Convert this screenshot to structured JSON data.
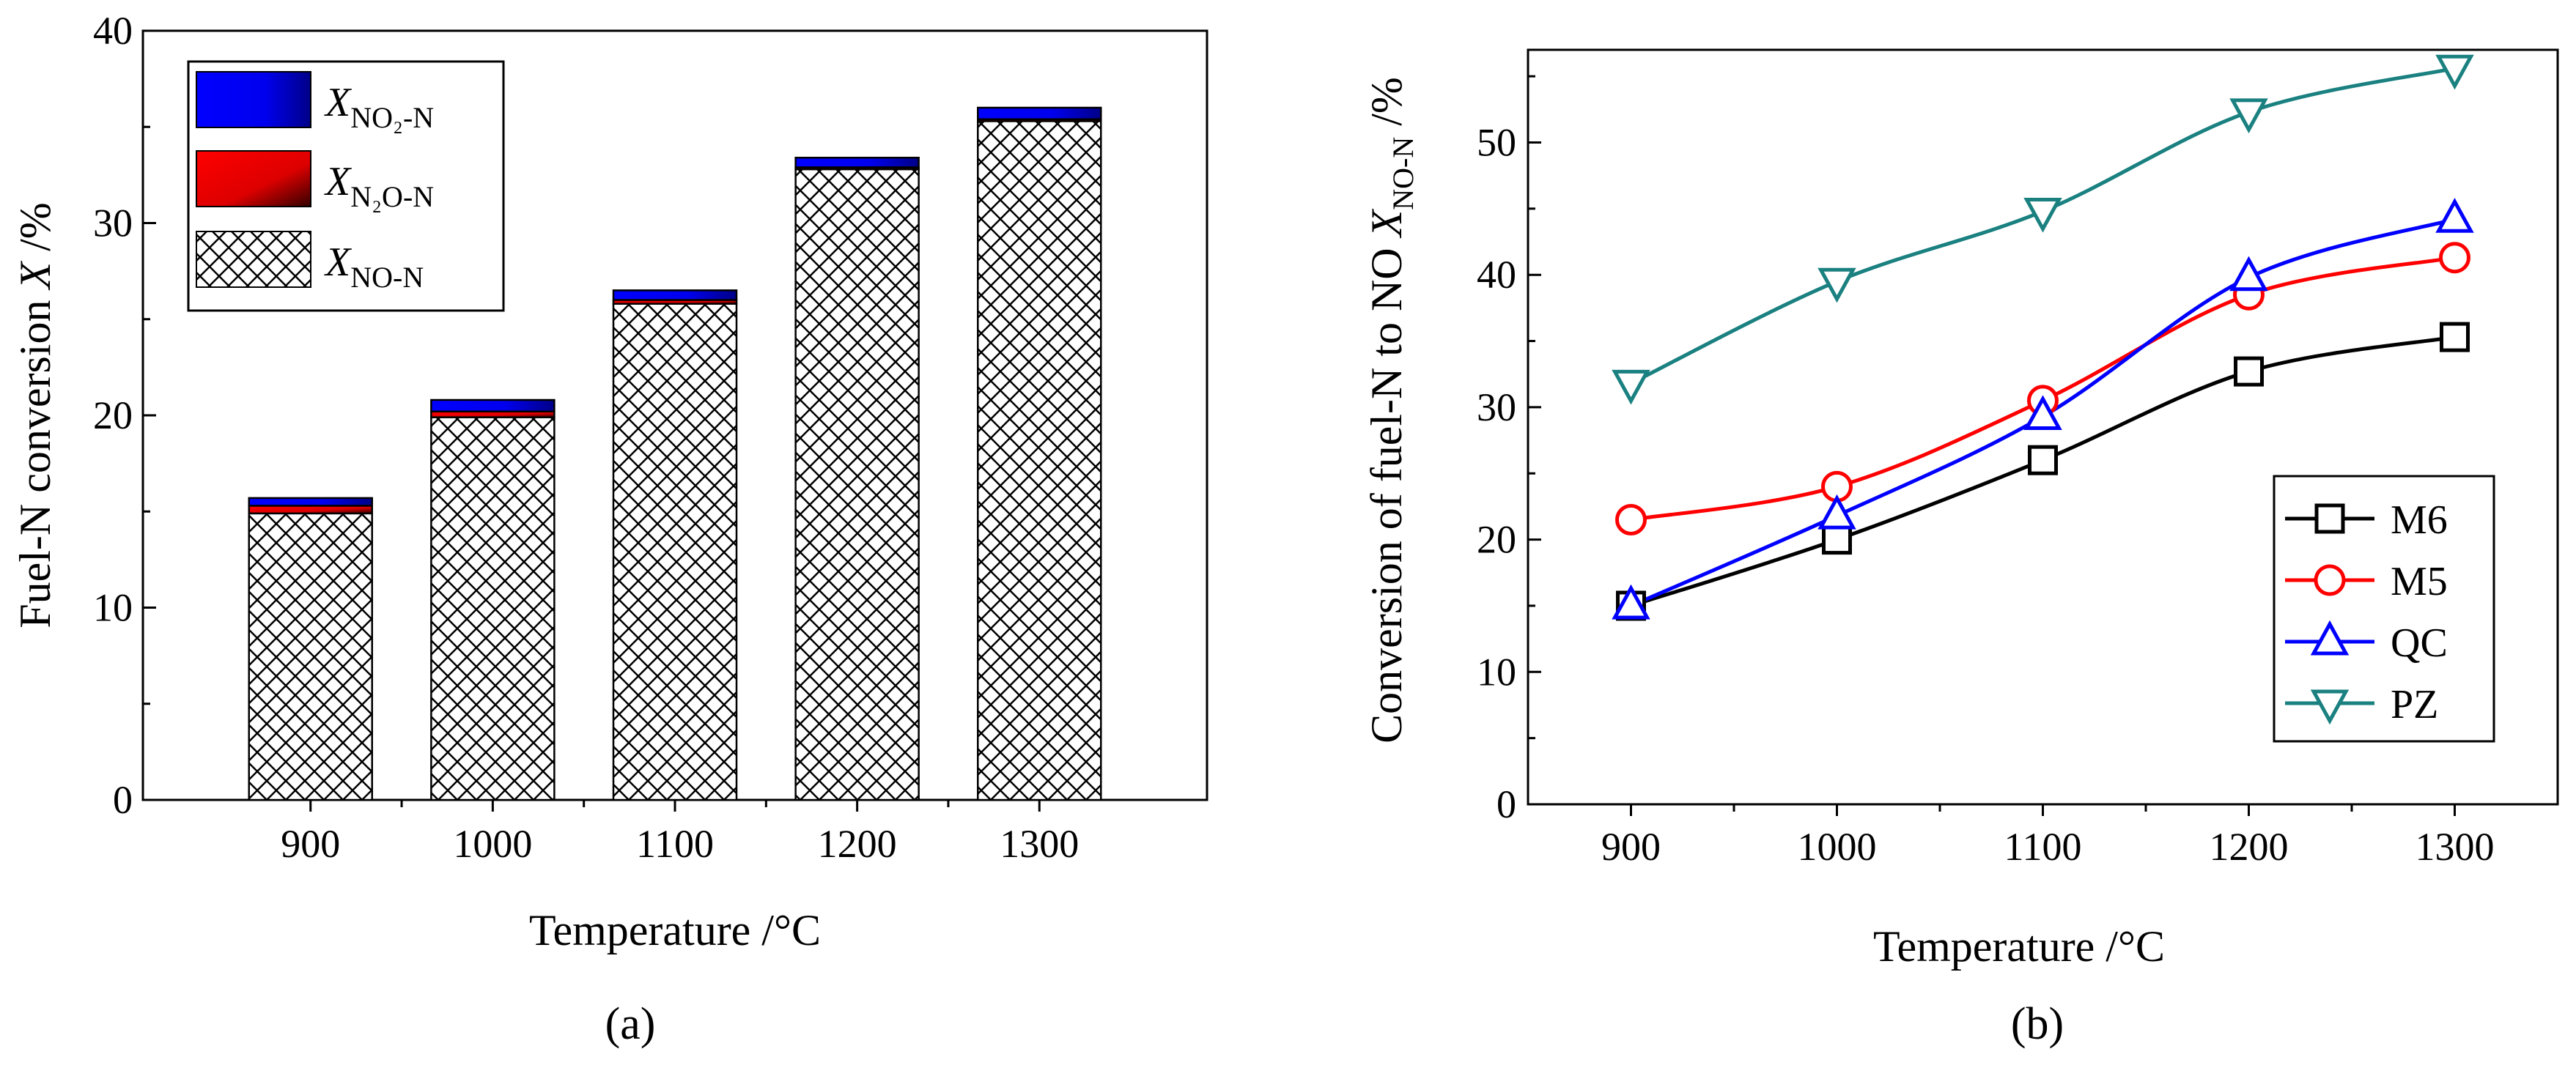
{
  "chart_data": [
    {
      "type": "bar",
      "stacked": true,
      "panel_label": "(a)",
      "xlabel": "Temperature /°C",
      "ylabel": "Fuel-N conversion X /%",
      "categories": [
        "900",
        "1000",
        "1100",
        "1200",
        "1300"
      ],
      "ylim": [
        0,
        40
      ],
      "yticks": [
        0,
        10,
        20,
        30,
        40
      ],
      "series": [
        {
          "name": "X_NO-N",
          "label_main": "X",
          "label_sub": "NO-N",
          "values": [
            14.9,
            19.9,
            25.8,
            32.8,
            35.3
          ],
          "color": "#000000",
          "pattern": "crosshatch"
        },
        {
          "name": "X_N2O-N",
          "label_main": "X",
          "label_sub": "N₂O-N",
          "values": [
            0.4,
            0.3,
            0.2,
            0.1,
            0.1
          ],
          "color": "#ff0000"
        },
        {
          "name": "X_NO2-N",
          "label_main": "X",
          "label_sub": "NO₂-N",
          "values": [
            0.4,
            0.6,
            0.5,
            0.5,
            0.6
          ],
          "color": "#0000ff"
        }
      ],
      "legend_position": "top-left"
    },
    {
      "type": "line",
      "panel_label": "(b)",
      "xlabel": "Temperature /°C",
      "ylabel_main": "Conversion of fuel-N to NO X",
      "ylabel_sub": "NO-N",
      "ylabel_suffix": " /%",
      "x": [
        900,
        1000,
        1100,
        1200,
        1300
      ],
      "xlim": [
        850,
        1350
      ],
      "ylim": [
        0,
        57
      ],
      "yticks": [
        0,
        10,
        20,
        30,
        40,
        50
      ],
      "xticks": [
        900,
        1000,
        1100,
        1200,
        1300
      ],
      "series": [
        {
          "name": "M6",
          "values": [
            15.0,
            20.0,
            26.0,
            32.7,
            35.3
          ],
          "color": "#000000",
          "marker": "square"
        },
        {
          "name": "M5",
          "values": [
            21.5,
            24.0,
            30.5,
            38.5,
            41.3
          ],
          "color": "#ff0000",
          "marker": "circle"
        },
        {
          "name": "QC",
          "values": [
            15.0,
            21.8,
            29.3,
            39.8,
            44.2
          ],
          "color": "#0000ff",
          "marker": "triangle-up"
        },
        {
          "name": "PZ",
          "values": [
            31.8,
            39.5,
            44.8,
            52.3,
            55.6
          ],
          "color": "#1a8080",
          "marker": "triangle-down"
        }
      ],
      "legend_position": "bottom-right"
    }
  ]
}
